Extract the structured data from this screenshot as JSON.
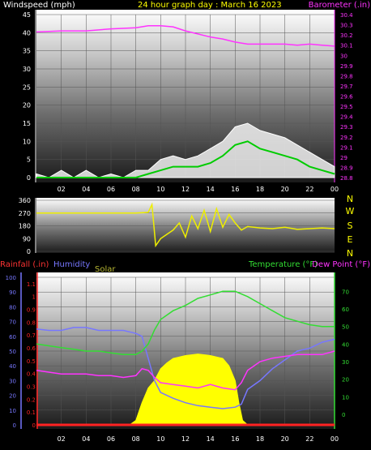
{
  "title": "24 hour graph day : March 16 2023",
  "colors": {
    "background": "#000000",
    "panel_top": "#ffffff",
    "panel_bottom": "#1a1a1a",
    "axis_text": "#ffffff",
    "barometer": "#ff33ff",
    "wind_speed": "#ffffff",
    "wind_avg": "#00cc00",
    "wind_direction": "#eeee00",
    "rain": "#ff2222",
    "humidity": "#7777ff",
    "solar": "#ffff00",
    "temperature": "#33dd33",
    "dewpoint": "#ff33ff",
    "solar_label": "#b8b833"
  },
  "compass": [
    "N",
    "W",
    "S",
    "E",
    "N"
  ],
  "chart_data": [
    {
      "type": "line",
      "name": "wind-barometer",
      "title": "24 hour graph day : March 16 2023",
      "ylabel": "Windspeed (mph)",
      "y2label": "Barometer (.in)",
      "ylim": [
        0,
        45
      ],
      "yticks": [
        "0",
        "5",
        "10",
        "15",
        "20",
        "25",
        "30",
        "35",
        "40",
        "45"
      ],
      "y2lim": [
        28.8,
        30.4
      ],
      "y2ticks": [
        "28.8",
        "28.9",
        "29",
        "29.1",
        "29.2",
        "29.3",
        "29.4",
        "29.5",
        "29.6",
        "29.7",
        "29.8",
        "29.9",
        "30",
        "30.1",
        "30.2",
        "30.3",
        "30.4"
      ],
      "xlim": [
        0,
        24
      ],
      "xticks": [
        "02",
        "04",
        "06",
        "08",
        "10",
        "12",
        "14",
        "16",
        "18",
        "20",
        "22",
        "00"
      ],
      "series": [
        {
          "role": "barometer",
          "axis": "right",
          "x": [
            0,
            2,
            4,
            6,
            8,
            9,
            10,
            11,
            12,
            13,
            14,
            15,
            16,
            17,
            18,
            19,
            20,
            21,
            22,
            23,
            24
          ],
          "values": [
            30.23,
            30.24,
            30.24,
            30.26,
            30.27,
            30.29,
            30.29,
            30.28,
            30.24,
            30.21,
            30.18,
            30.16,
            30.13,
            30.11,
            30.11,
            30.11,
            30.11,
            30.1,
            30.11,
            30.1,
            30.09
          ]
        },
        {
          "role": "wind_gust",
          "axis": "left",
          "x": [
            0,
            1,
            2,
            3,
            4,
            5,
            6,
            7,
            8,
            9,
            10,
            11,
            12,
            13,
            14,
            15,
            16,
            17,
            18,
            19,
            20,
            21,
            22,
            23,
            24
          ],
          "values": [
            1,
            0,
            2,
            0,
            2,
            0,
            1,
            0,
            2,
            2,
            5,
            6,
            5,
            6,
            8,
            10,
            14,
            15,
            13,
            12,
            11,
            9,
            7,
            5,
            3
          ]
        },
        {
          "role": "wind_avg",
          "axis": "left",
          "x": [
            0,
            1,
            2,
            3,
            4,
            5,
            6,
            7,
            8,
            9,
            10,
            11,
            12,
            13,
            14,
            15,
            16,
            17,
            18,
            19,
            20,
            21,
            22,
            23,
            24
          ],
          "values": [
            0,
            0,
            0,
            0,
            0,
            0,
            0,
            0,
            0,
            1,
            2,
            3,
            3,
            3,
            4,
            6,
            9,
            10,
            8,
            7,
            6,
            5,
            3,
            2,
            1
          ]
        }
      ]
    },
    {
      "type": "line",
      "name": "wind-direction",
      "ylim": [
        0,
        360
      ],
      "yticks": [
        "0",
        "90",
        "180",
        "270",
        "360"
      ],
      "xlim": [
        0,
        24
      ],
      "series": [
        {
          "role": "direction",
          "x": [
            0,
            1,
            2,
            3,
            4,
            5,
            6,
            7,
            8,
            9,
            9.3,
            9.6,
            10,
            10.5,
            11,
            11.5,
            12,
            12.5,
            13,
            13.5,
            14,
            14.5,
            15,
            15.5,
            16,
            16.5,
            17,
            18,
            19,
            20,
            21,
            22,
            23,
            24
          ],
          "values": [
            270,
            270,
            270,
            270,
            270,
            270,
            270,
            270,
            270,
            275,
            330,
            40,
            90,
            120,
            150,
            200,
            100,
            250,
            160,
            290,
            140,
            300,
            170,
            260,
            200,
            150,
            175,
            165,
            160,
            170,
            155,
            160,
            165,
            160
          ]
        }
      ]
    },
    {
      "type": "line",
      "name": "temp-humidity-solar",
      "labels": {
        "rainfall": "Rainfall (.in)",
        "humidity": "Humidity",
        "solar": "Solar",
        "temperature": "Temperature (°F)",
        "dewpoint": "Dew Point (°F)"
      },
      "humidity_ylim": [
        0,
        100
      ],
      "humidity_yticks": [
        "0",
        "10",
        "20",
        "30",
        "40",
        "50",
        "60",
        "70",
        "80",
        "90",
        "100"
      ],
      "rain_ylim": [
        0,
        1.15
      ],
      "rain_yticks": [
        "0",
        "0.1",
        "0.2",
        "0.3",
        "0.4",
        "0.5",
        "0.6",
        "0.7",
        "0.8",
        "0.9",
        "1",
        "1.1"
      ],
      "temp_ylim": [
        -6,
        78
      ],
      "temp_yticks": [
        "0",
        "10",
        "20",
        "30",
        "40",
        "50",
        "60",
        "70"
      ],
      "xlim": [
        0,
        24
      ],
      "xticks": [
        "02",
        "04",
        "06",
        "08",
        "10",
        "12",
        "14",
        "16",
        "18",
        "20",
        "22",
        "00"
      ],
      "series": [
        {
          "role": "temperature",
          "axis": "temp",
          "x": [
            0,
            1,
            2,
            3,
            4,
            5,
            6,
            7,
            8,
            8.5,
            9,
            9.5,
            10,
            11,
            12,
            13,
            14,
            15,
            16,
            17,
            18,
            19,
            20,
            21,
            22,
            23,
            24
          ],
          "values": [
            40,
            39,
            38,
            37,
            36,
            36,
            35,
            34,
            34,
            36,
            40,
            48,
            54,
            59,
            62,
            66,
            68,
            70,
            70,
            67,
            63,
            59,
            55,
            53,
            51,
            50,
            50
          ]
        },
        {
          "role": "dewpoint",
          "axis": "temp",
          "x": [
            0,
            1,
            2,
            3,
            4,
            5,
            6,
            7,
            8,
            8.5,
            9,
            9.5,
            10,
            11,
            12,
            13,
            14,
            15,
            16,
            16.5,
            17,
            18,
            19,
            20,
            21,
            22,
            23,
            24
          ],
          "values": [
            25,
            24,
            23,
            23,
            23,
            22,
            22,
            21,
            22,
            26,
            25,
            21,
            18,
            17,
            16,
            15,
            17,
            15,
            14,
            18,
            25,
            30,
            32,
            33,
            34,
            34,
            34,
            36
          ]
        },
        {
          "role": "humidity",
          "axis": "humidity",
          "x": [
            0,
            1,
            2,
            3,
            4,
            5,
            6,
            7,
            8,
            8.5,
            9,
            9.5,
            10,
            11,
            12,
            13,
            14,
            15,
            16,
            16.5,
            17,
            18,
            19,
            20,
            21,
            22,
            23,
            24
          ],
          "values": [
            65,
            64,
            64,
            66,
            66,
            64,
            64,
            64,
            62,
            60,
            45,
            30,
            22,
            18,
            15,
            13,
            12,
            11,
            12,
            14,
            24,
            30,
            38,
            44,
            50,
            52,
            56,
            58
          ]
        },
        {
          "role": "solar",
          "axis": "humidity",
          "x": [
            0,
            7.5,
            8,
            8.5,
            9,
            9.5,
            10,
            10.5,
            11,
            12,
            13,
            14,
            15,
            15.5,
            16,
            16.3,
            16.6,
            17,
            24
          ],
          "values": [
            0,
            0,
            3,
            15,
            25,
            30,
            38,
            42,
            45,
            47,
            48,
            47,
            45,
            40,
            30,
            15,
            3,
            0,
            0
          ]
        },
        {
          "role": "rain",
          "axis": "rain",
          "x": [
            0,
            24
          ],
          "values": [
            0,
            0
          ]
        }
      ]
    }
  ]
}
